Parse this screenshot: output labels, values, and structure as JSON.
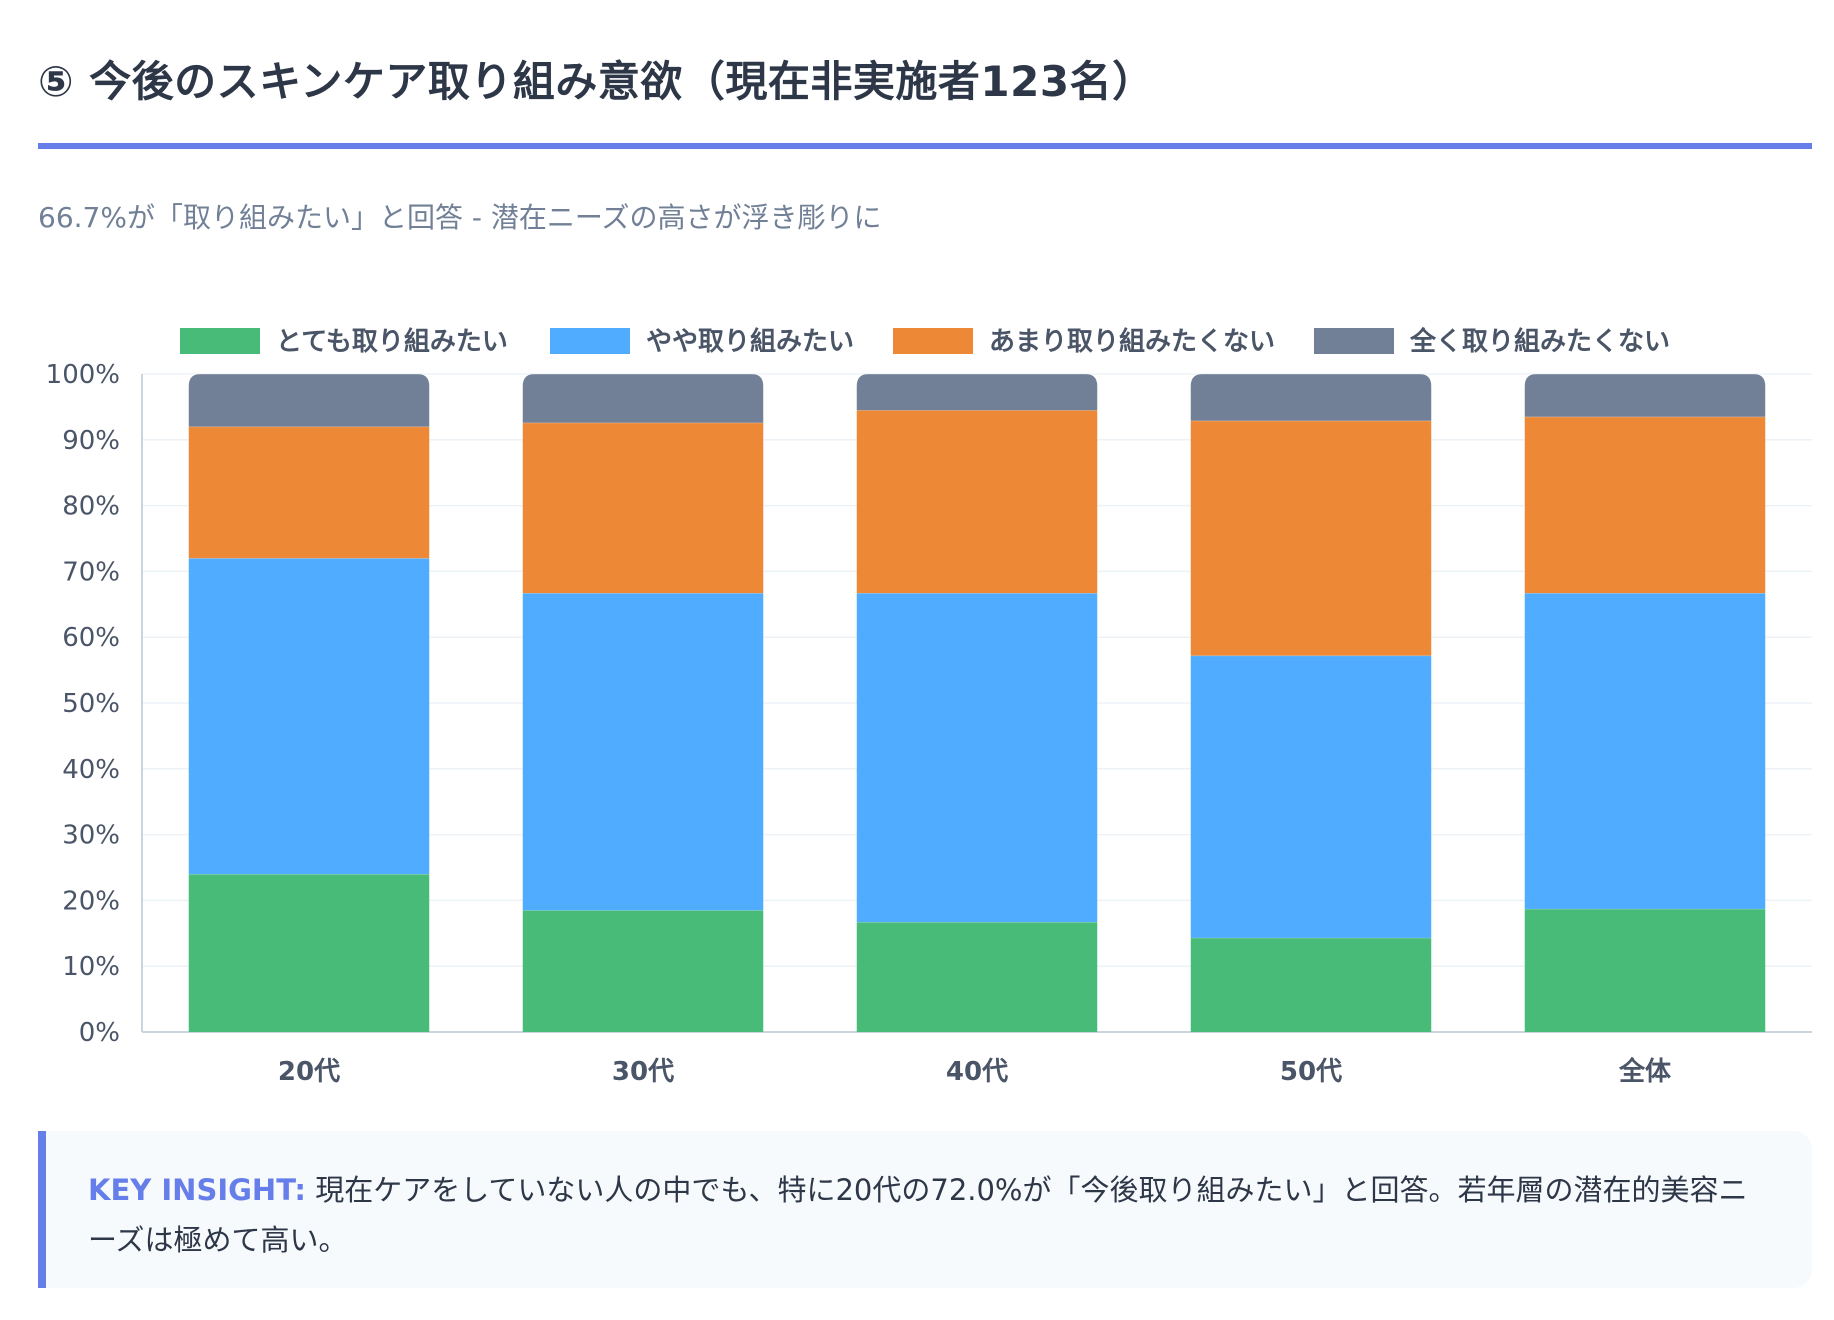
{
  "header": {
    "title": "⑤ 今後のスキンケア取り組み意欲（現在非実施者123名）",
    "subtitle": "66.7%が「取り組みたい」と回答 - 潜在ニーズの高さが浮き彫りに"
  },
  "insight": {
    "label": "KEY INSIGHT:",
    "text": " 現在ケアをしていない人の中でも、特に20代の72.0%が「今後取り組みたい」と回答。若年層の潜在的美容ニーズは極めて高い。"
  },
  "chart_data": {
    "type": "bar",
    "stacked": true,
    "categories": [
      "20代",
      "30代",
      "40代",
      "50代",
      "全体"
    ],
    "series": [
      {
        "name": "とても取り組みたい",
        "color": "#48bb78",
        "values": [
          24.0,
          18.5,
          16.7,
          14.3,
          18.7
        ]
      },
      {
        "name": "やや取り組みたい",
        "color": "#4facfe",
        "values": [
          48.0,
          48.2,
          50.0,
          42.9,
          48.0
        ]
      },
      {
        "name": "あまり取り組みたくない",
        "color": "#ed8936",
        "values": [
          20.0,
          25.9,
          27.8,
          35.7,
          26.8
        ]
      },
      {
        "name": "全く取り組みたくない",
        "color": "#718096",
        "values": [
          8.0,
          7.4,
          5.5,
          7.1,
          6.5
        ]
      }
    ],
    "ylim": [
      0,
      100
    ],
    "yticks": [
      "0%",
      "10%",
      "20%",
      "30%",
      "40%",
      "50%",
      "60%",
      "70%",
      "80%",
      "90%",
      "100%"
    ],
    "legend": "top",
    "grid": true
  }
}
